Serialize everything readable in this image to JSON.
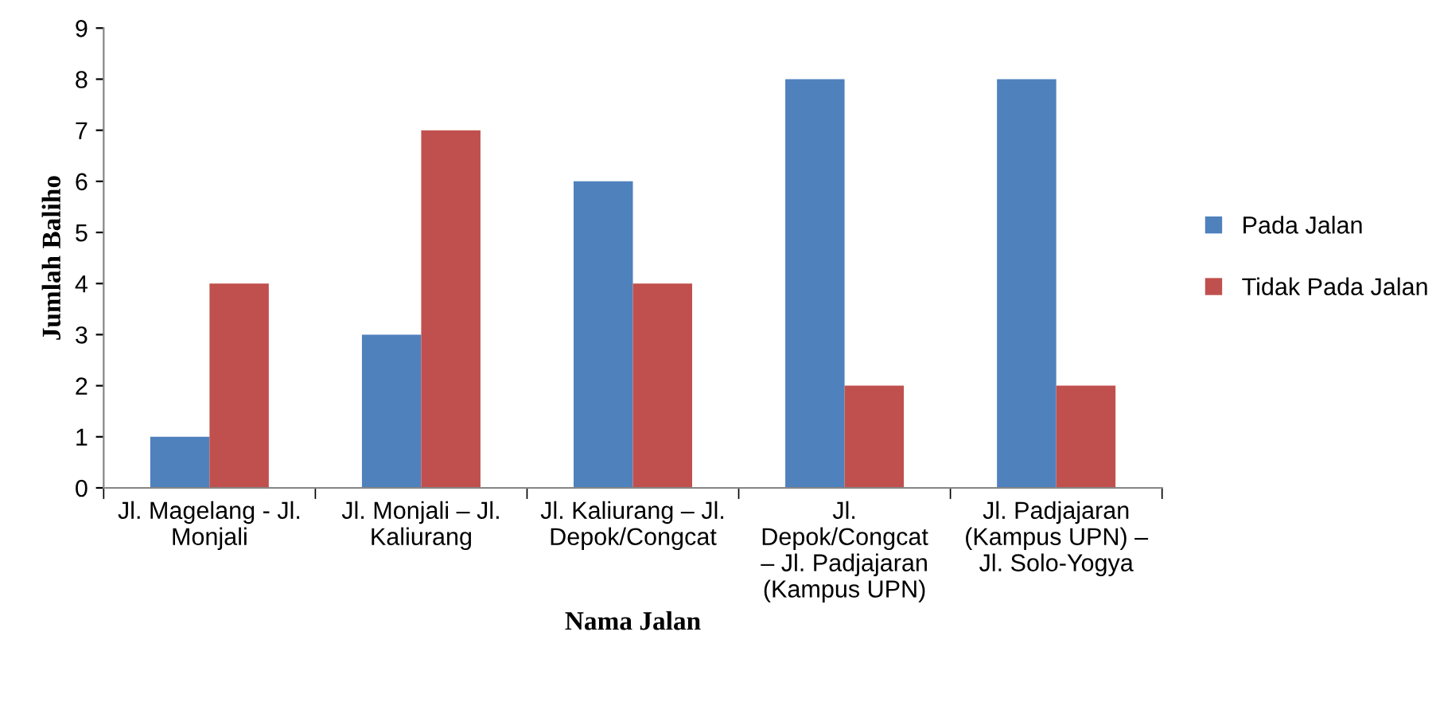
{
  "chart_data": {
    "type": "bar",
    "xlabel": "Nama Jalan",
    "ylabel": "Jumlah Baliho",
    "categories": [
      "Jl. Magelang - Jl.\nMonjali",
      "Jl. Monjali – Jl.\nKaliurang",
      "Jl. Kaliurang – Jl.\nDepok/Congcat",
      "Jl.\nDepok/Congcat\n– Jl. Padjajaran\n(Kampus UPN)",
      "Jl. Padjajaran\n(Kampus UPN) –\nJl. Solo-Yogya"
    ],
    "series": [
      {
        "name": "Pada Jalan",
        "color": "#4f81bd",
        "values": [
          1,
          3,
          6,
          8,
          8
        ]
      },
      {
        "name": "Tidak Pada Jalan",
        "color": "#c0504d",
        "values": [
          4,
          7,
          4,
          2,
          2
        ]
      }
    ],
    "ylim": [
      0,
      9
    ],
    "yticks": [
      0,
      1,
      2,
      3,
      4,
      5,
      6,
      7,
      8,
      9
    ],
    "grid": false,
    "legend": "right"
  }
}
